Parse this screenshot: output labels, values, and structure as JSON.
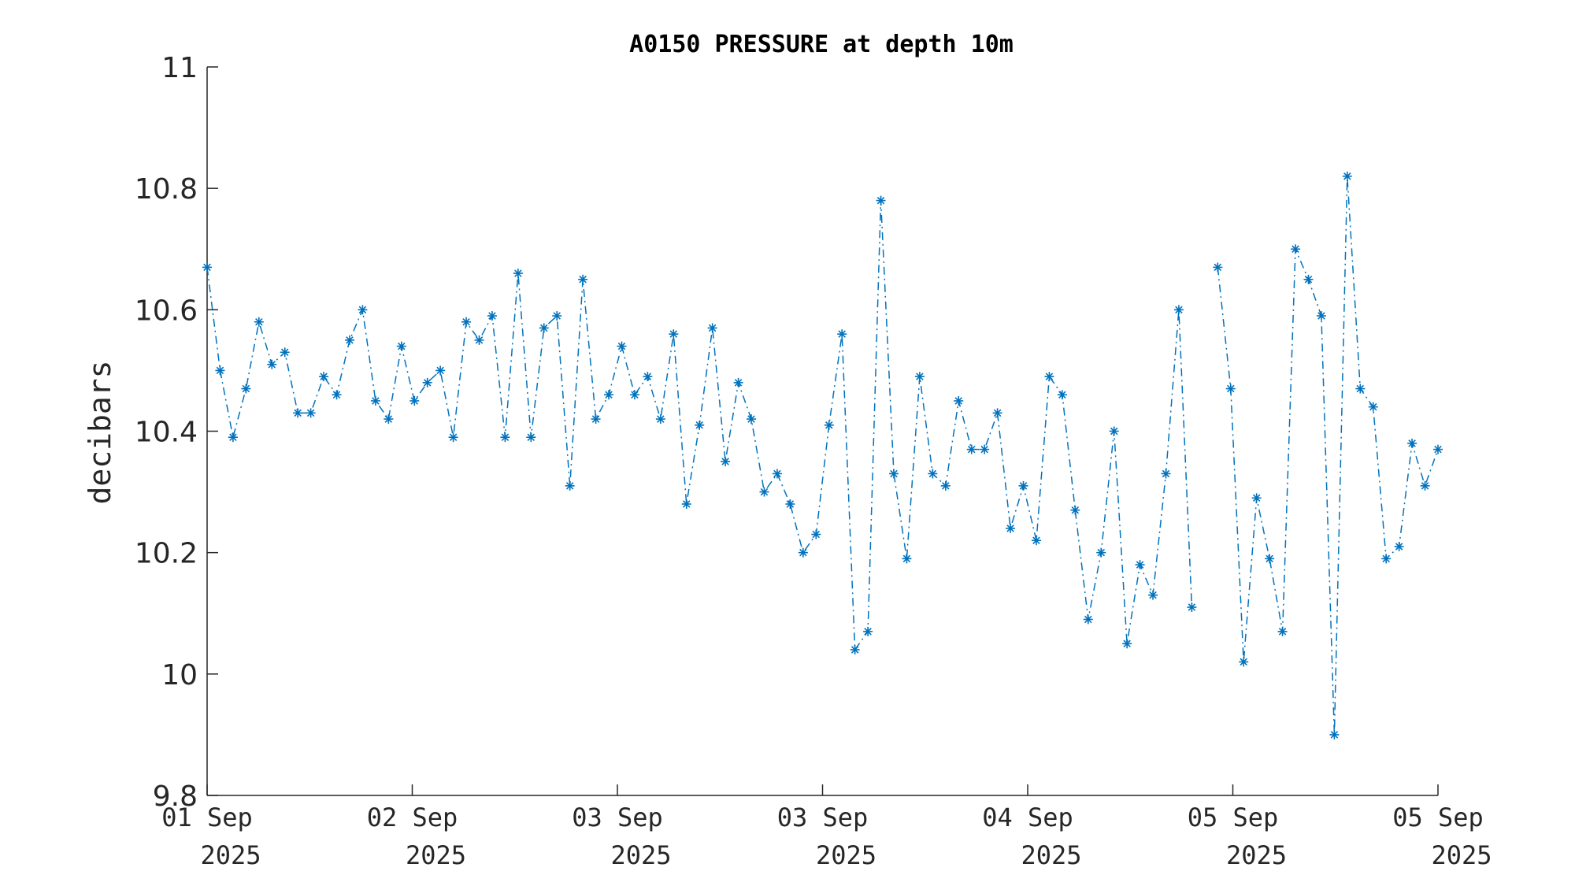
{
  "chart_data": {
    "type": "line",
    "title": "A0150 PRESSURE at depth 10m",
    "xlabel": "",
    "ylabel": "decibars",
    "ylim": [
      9.8,
      11
    ],
    "yticks": [
      "9.8",
      "10",
      "10.2",
      "10.4",
      "10.6",
      "10.8",
      "11"
    ],
    "xticks": [
      {
        "day": "01 Sep",
        "year": "2025"
      },
      {
        "day": "02 Sep",
        "year": "2025"
      },
      {
        "day": "03 Sep",
        "year": "2025"
      },
      {
        "day": "03 Sep",
        "year": "2025"
      },
      {
        "day": "04 Sep",
        "year": "2025"
      },
      {
        "day": "05 Sep",
        "year": "2025"
      },
      {
        "day": "05 Sep",
        "year": "2025"
      }
    ],
    "grid": false,
    "line_style": "dash-dot",
    "marker": "asterisk",
    "color": "#0072BD",
    "series": [
      {
        "values": [
          10.67,
          10.5,
          10.39,
          10.47,
          10.58,
          10.51,
          10.53,
          10.43,
          10.43,
          10.49,
          10.46,
          10.55,
          10.6,
          10.45,
          10.42,
          10.54,
          10.45,
          10.48,
          10.5,
          10.39,
          10.58,
          10.55,
          10.59,
          10.39,
          10.66,
          10.39,
          10.57,
          10.59,
          10.31,
          10.65,
          10.42,
          10.46,
          10.54,
          10.46,
          10.49,
          10.42,
          10.56,
          10.28,
          10.41,
          10.57,
          10.35,
          10.48,
          10.42,
          10.3,
          10.33,
          10.28,
          10.2,
          10.23,
          10.41,
          10.56,
          10.04,
          10.07,
          10.78,
          10.33,
          10.19,
          10.49,
          10.33,
          10.31,
          10.45,
          10.37,
          10.37,
          10.43,
          10.24,
          10.31,
          10.22,
          10.49,
          10.46,
          10.27,
          10.09,
          10.2,
          10.4,
          10.05,
          10.18,
          10.13,
          10.33,
          10.6,
          10.11,
          null,
          10.67,
          10.47,
          10.02,
          10.29,
          10.19,
          10.07,
          10.7,
          10.65,
          10.59,
          9.9,
          10.82,
          10.47,
          10.44,
          10.19,
          10.21,
          10.38,
          10.31,
          10.37
        ]
      }
    ]
  }
}
